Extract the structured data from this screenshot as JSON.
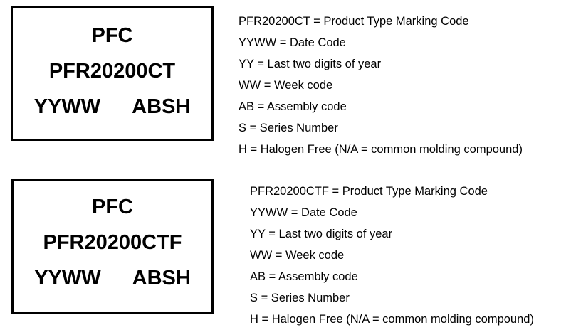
{
  "markings": [
    {
      "box": {
        "line1": "PFC",
        "line2": "PFR20200CT",
        "line3_left": "YYWW",
        "line3_right": "ABSH"
      },
      "legend": [
        "PFR20200CT = Product Type Marking Code",
        "YYWW = Date Code",
        "YY = Last two digits of year",
        "WW = Week code",
        "AB = Assembly code",
        "S = Series Number",
        "H = Halogen Free (N/A = common molding compound)"
      ]
    },
    {
      "box": {
        "line1": "PFC",
        "line2": "PFR20200CTF",
        "line3_left": "YYWW",
        "line3_right": "ABSH"
      },
      "legend": [
        "PFR20200CTF = Product Type Marking Code",
        "YYWW = Date Code",
        "YY = Last two digits of year",
        "WW = Week code",
        "AB = Assembly code",
        "S = Series Number",
        "H = Halogen Free (N/A = common molding compound)"
      ]
    }
  ]
}
